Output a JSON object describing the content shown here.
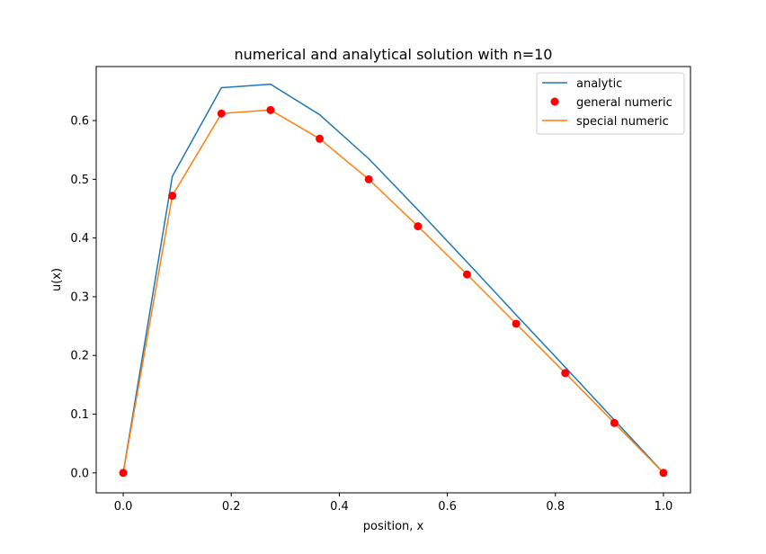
{
  "chart_data": {
    "type": "line",
    "title": "numerical and analytical solution with n=10",
    "xlabel": "position, x",
    "ylabel": "u(x)",
    "xlim": [
      -0.05,
      1.05
    ],
    "ylim": [
      -0.034,
      0.692
    ],
    "xticks": [
      0.0,
      0.2,
      0.4,
      0.6,
      0.8,
      1.0
    ],
    "xtick_labels": [
      "0.0",
      "0.2",
      "0.4",
      "0.6",
      "0.8",
      "1.0"
    ],
    "yticks": [
      0.0,
      0.1,
      0.2,
      0.3,
      0.4,
      0.5,
      0.6
    ],
    "ytick_labels": [
      "0.0",
      "0.1",
      "0.2",
      "0.3",
      "0.4",
      "0.5",
      "0.6"
    ],
    "grid": false,
    "legend_position": "top-right",
    "x": [
      0.0,
      0.0909,
      0.1818,
      0.2727,
      0.3636,
      0.4545,
      0.5455,
      0.6364,
      0.7273,
      0.8182,
      0.9091,
      1.0
    ],
    "series": [
      {
        "name": "analytic",
        "kind": "line",
        "color": "#1f77b4",
        "values": [
          0.0,
          0.505,
          0.656,
          0.662,
          0.61,
          0.535,
          0.448,
          0.359,
          0.269,
          0.18,
          0.09,
          0.0
        ]
      },
      {
        "name": "general numeric",
        "kind": "scatter",
        "color": "#ff0000",
        "values": [
          0.0,
          0.472,
          0.612,
          0.618,
          0.569,
          0.5,
          0.42,
          0.338,
          0.254,
          0.17,
          0.085,
          0.0
        ]
      },
      {
        "name": "special numeric",
        "kind": "line",
        "color": "#ff7f0e",
        "values": [
          0.0,
          0.472,
          0.612,
          0.618,
          0.569,
          0.5,
          0.42,
          0.338,
          0.254,
          0.17,
          0.085,
          0.0
        ]
      }
    ]
  }
}
